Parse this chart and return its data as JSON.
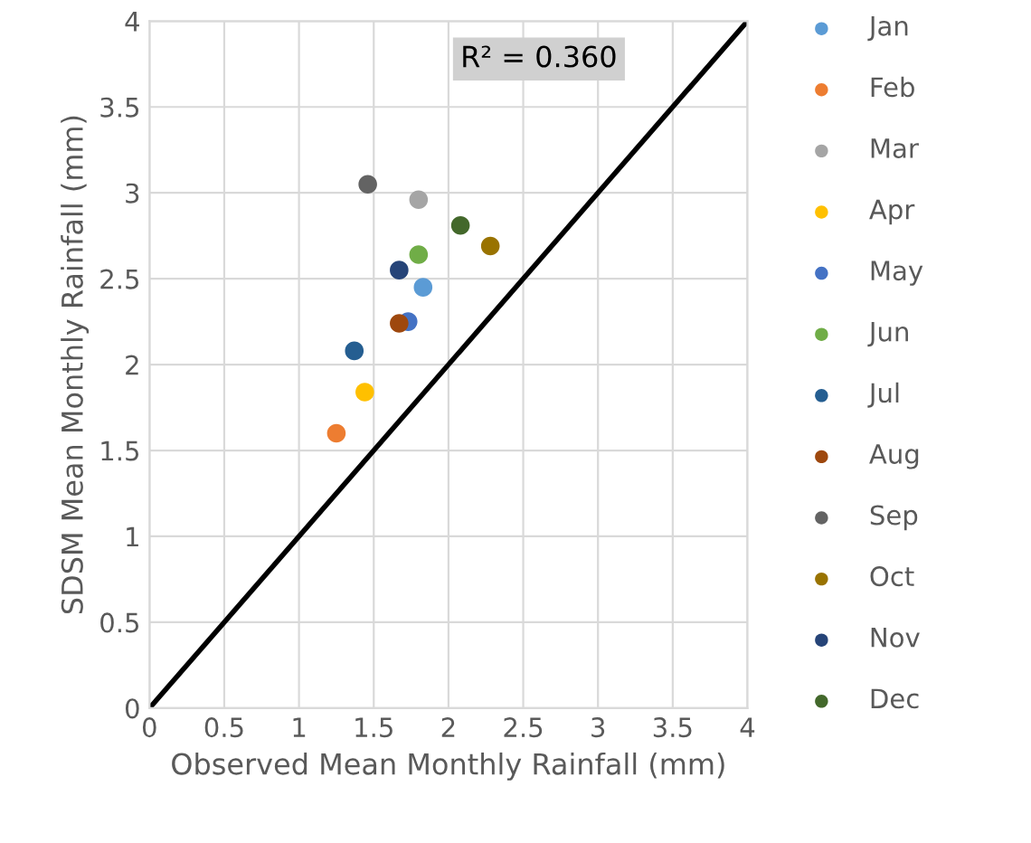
{
  "chart_data": {
    "type": "scatter",
    "xlabel": "Observed Mean Monthly Rainfall (mm)",
    "ylabel": "SDSM Mean Monthly Rainfall (mm)",
    "xlim": [
      0,
      4
    ],
    "ylim": [
      0,
      4
    ],
    "xticks": [
      0,
      0.5,
      1,
      1.5,
      2,
      2.5,
      3,
      3.5,
      4
    ],
    "yticks": [
      0,
      0.5,
      1,
      1.5,
      2,
      2.5,
      3,
      3.5,
      4
    ],
    "grid": true,
    "legend": "right",
    "marker": "circle",
    "annotations": [
      "R² = 0.360"
    ],
    "series": [
      {
        "name": "Jan",
        "color": "#5b9bd5",
        "x": [
          1.83
        ],
        "values": [
          2.45
        ]
      },
      {
        "name": "Feb",
        "color": "#ed7d31",
        "x": [
          1.25
        ],
        "values": [
          1.6
        ]
      },
      {
        "name": "Mar",
        "color": "#a5a5a5",
        "x": [
          1.8
        ],
        "values": [
          2.96
        ]
      },
      {
        "name": "Apr",
        "color": "#ffc000",
        "x": [
          1.44
        ],
        "values": [
          1.84
        ]
      },
      {
        "name": "May",
        "color": "#4472c4",
        "x": [
          1.73
        ],
        "values": [
          2.25
        ]
      },
      {
        "name": "Jun",
        "color": "#70ad47",
        "x": [
          1.8
        ],
        "values": [
          2.64
        ]
      },
      {
        "name": "Jul",
        "color": "#255e91",
        "x": [
          1.37
        ],
        "values": [
          2.08
        ]
      },
      {
        "name": "Aug",
        "color": "#9e480e",
        "x": [
          1.67
        ],
        "values": [
          2.24
        ]
      },
      {
        "name": "Sep",
        "color": "#636363",
        "x": [
          1.46
        ],
        "values": [
          3.05
        ]
      },
      {
        "name": "Oct",
        "color": "#997300",
        "x": [
          2.28
        ],
        "values": [
          2.69
        ]
      },
      {
        "name": "Nov",
        "color": "#264478",
        "x": [
          1.67
        ],
        "values": [
          2.55
        ]
      },
      {
        "name": "Dec",
        "color": "#43682b",
        "x": [
          2.08
        ],
        "values": [
          2.81
        ]
      },
      {
        "type": "line",
        "color": "#000000",
        "x": [
          0,
          4
        ],
        "values": [
          0,
          4
        ],
        "line_style": "solid",
        "marker": "none"
      }
    ]
  }
}
